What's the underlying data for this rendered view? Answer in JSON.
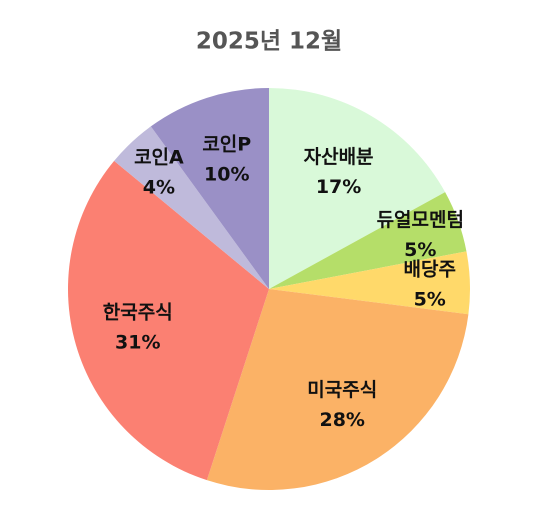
{
  "chart_data": {
    "type": "pie",
    "title": "2025년 12월",
    "categories": [
      "자산배분",
      "듀얼모멘텀",
      "배당주",
      "미국주식",
      "한국주식",
      "코인A",
      "코인P"
    ],
    "values": [
      17,
      5,
      5,
      28,
      31,
      4,
      10
    ],
    "value_labels": [
      "17%",
      "5%",
      "5%",
      "28%",
      "31%",
      "4%",
      "10%"
    ],
    "colors": [
      "#d9f9d9",
      "#b5de69",
      "#ffd96a",
      "#fbb266",
      "#fb8072",
      "#bfbadb",
      "#9a90c6"
    ]
  }
}
